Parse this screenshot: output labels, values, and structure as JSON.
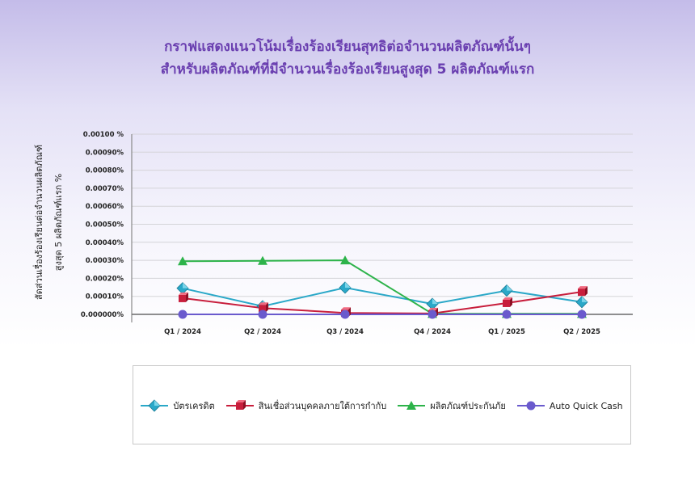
{
  "chart_data": {
    "type": "line",
    "title_lines": [
      "กราฟแสดงแนวโน้มเรื่องร้องเรียนสุทธิต่อจำนวนผลิตภัณฑ์นั้นๆ",
      "สำหรับผลิตภัณฑ์ที่มีจำนวนเรื่องร้องเรียนสูงสุด 5 ผลิตภัณฑ์แรก"
    ],
    "ylabel_line1": "สัดส่วนเรื่องร้องเรียนต่อจำนวนผลิตภัณฑ์",
    "ylabel_line2": "สูงสุด 5 ผลิตภัณฑ์แรก    %",
    "categories": [
      "Q1 / 2024",
      "Q2 / 2024",
      "Q3 / 2024",
      "Q4 / 2024",
      "Q1 / 2025",
      "Q2 / 2025"
    ],
    "ylim": [
      0,
      0.001
    ],
    "yticks": [
      "0.000000%",
      "0.00010%",
      "0.00020%",
      "0.00030%",
      "0.00040%",
      "0.00050%",
      "0.00060%",
      "0.00070%",
      "0.00080%",
      "0.00090%",
      "0.00100 %"
    ],
    "grid": true,
    "legend_position": "bottom",
    "series": [
      {
        "name": "บัตรเครดิต",
        "color": "#2aa8c8",
        "marker": "diamond",
        "values": [
          0.000145,
          4.5e-05,
          0.000148,
          5.8e-05,
          0.000132,
          6.8e-05
        ]
      },
      {
        "name": "สินเชื่อส่วนบุคคลภายใต้การกำกับ",
        "color": "#c81e3c",
        "marker": "cube",
        "values": [
          9e-05,
          3.5e-05,
          8e-06,
          5e-06,
          6.3e-05,
          0.000125
        ]
      },
      {
        "name": "ผลิตภัณฑ์ประกันภัย",
        "color": "#2db34a",
        "marker": "triangle",
        "values": [
          0.000295,
          0.000297,
          0.0003,
          3e-06,
          3e-06,
          3e-06
        ]
      },
      {
        "name": "Auto Quick Cash",
        "color": "#6a5acd",
        "marker": "circle",
        "values": [
          0.0,
          0.0,
          0.0,
          0.0,
          0.0,
          0.0
        ]
      }
    ]
  }
}
